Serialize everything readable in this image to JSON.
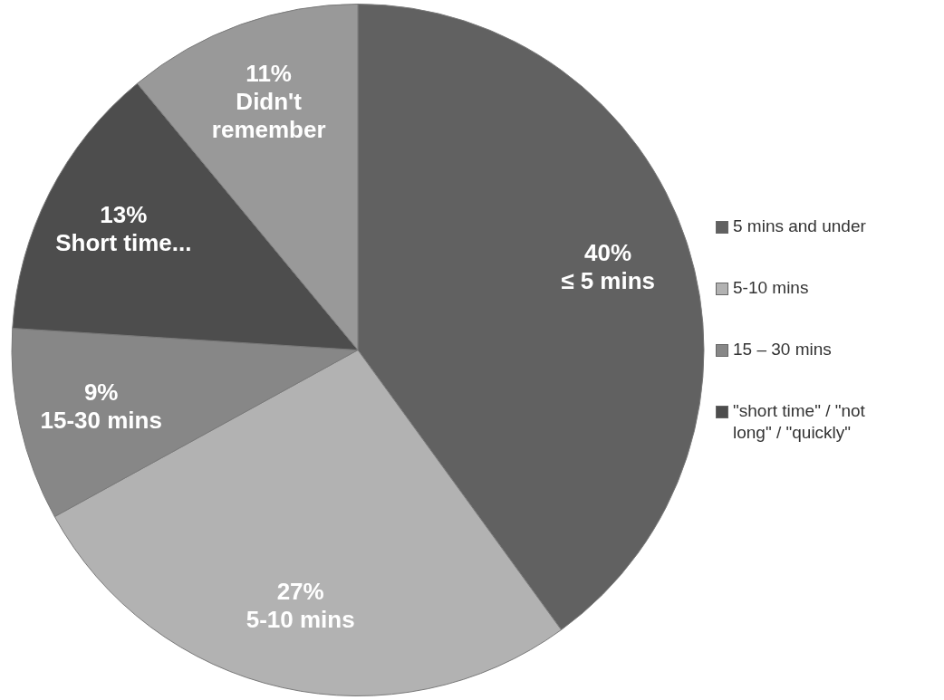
{
  "chart_data": {
    "type": "pie",
    "categories": [
      "5 mins and under",
      "5-10 mins",
      "15 – 30 mins",
      "\"short time\" / \"not long\" / \"quickly\"",
      null
    ],
    "values": [
      40,
      27,
      9,
      13,
      11
    ],
    "colors": [
      "#616161",
      "#b2b2b2",
      "#878787",
      "#4d4d4d",
      "#999999"
    ],
    "value_labels": [
      "40%\n≤ 5 mins",
      "27%\n5-10 mins",
      "9%\n15-30 mins",
      "13%\nShort time...",
      "11%\nDidn't\nremember"
    ],
    "legend": "right"
  }
}
